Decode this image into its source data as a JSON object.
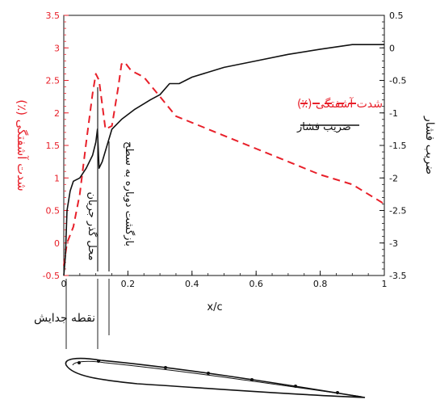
{
  "chart_data": {
    "type": "line",
    "xlabel": "x/c",
    "xlim": [
      0,
      1
    ],
    "x_ticks": [
      "0",
      "0.2",
      "0.4",
      "0.6",
      "0.8",
      "1"
    ],
    "left_axis": {
      "label": "شدت آشفتگی (٪)",
      "ylim": [
        -0.5,
        3.5
      ],
      "ticks": [
        "-0.5",
        "0",
        "0.5",
        "1",
        "1.5",
        "2",
        "2.5",
        "3",
        "3.5"
      ],
      "color": "#e8202a"
    },
    "right_axis": {
      "label": "ضریب فشار",
      "ylim": [
        -3.5,
        0.5
      ],
      "ticks": [
        "-3.5",
        "-3",
        "-2.5",
        "-2",
        "-1.5",
        "-1",
        "-0.5",
        "0",
        "0.5"
      ],
      "color": "#111111"
    },
    "legend_position": "right-middle",
    "series": [
      {
        "name": "شدت آشفتگی (٪)",
        "axis": "left",
        "style": "dashed",
        "color": "#e8202a",
        "x": [
          0.0,
          0.01,
          0.03,
          0.05,
          0.07,
          0.09,
          0.1,
          0.11,
          0.13,
          0.15,
          0.17,
          0.18,
          0.19,
          0.21,
          0.25,
          0.3,
          0.35,
          0.4,
          0.5,
          0.6,
          0.7,
          0.8,
          0.9,
          1.0
        ],
        "values": [
          -0.35,
          0.0,
          0.25,
          0.75,
          1.55,
          2.3,
          2.6,
          2.5,
          1.75,
          1.8,
          2.4,
          2.75,
          2.78,
          2.65,
          2.55,
          2.25,
          1.95,
          1.85,
          1.65,
          1.45,
          1.25,
          1.05,
          0.9,
          0.6
        ]
      },
      {
        "name": "ضریب فشار",
        "axis": "right",
        "style": "solid",
        "color": "#111111",
        "x": [
          0.0,
          0.005,
          0.01,
          0.02,
          0.03,
          0.05,
          0.07,
          0.09,
          0.1,
          0.105,
          0.11,
          0.12,
          0.15,
          0.18,
          0.22,
          0.27,
          0.3,
          0.33,
          0.36,
          0.4,
          0.5,
          0.6,
          0.7,
          0.8,
          0.9,
          1.0
        ],
        "values": [
          -3.5,
          -3.2,
          -2.5,
          -2.2,
          -2.05,
          -2.0,
          -1.85,
          -1.65,
          -1.45,
          -1.25,
          -1.85,
          -1.75,
          -1.25,
          -1.1,
          -0.95,
          -0.8,
          -0.72,
          -0.55,
          -0.55,
          -0.45,
          -0.3,
          -0.2,
          -0.1,
          -0.02,
          0.05,
          0.05
        ]
      }
    ],
    "annotations": {
      "transition": "محل گذر جریان",
      "reattachment": "بازگشت دوباره به سطح",
      "separation": "نقطه جدایش"
    }
  }
}
